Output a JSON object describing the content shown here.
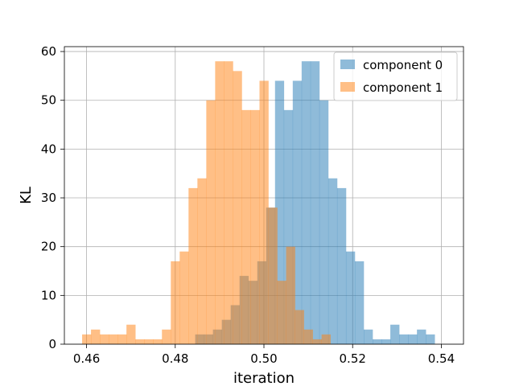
{
  "chart_data": {
    "type": "histogram",
    "title": "",
    "xlabel": "iteration",
    "ylabel": "KL",
    "xlim": [
      0.455,
      0.545
    ],
    "ylim": [
      0,
      61
    ],
    "xticks": [
      0.46,
      0.48,
      0.5,
      0.52,
      0.54
    ],
    "xtick_labels": [
      "0.46",
      "0.48",
      "0.50",
      "0.52",
      "0.54"
    ],
    "yticks": [
      0,
      10,
      20,
      30,
      40,
      50,
      60
    ],
    "ytick_labels": [
      "0",
      "10",
      "20",
      "30",
      "40",
      "50",
      "60"
    ],
    "grid": true,
    "legend_position": "top-right",
    "bin_width": 0.002,
    "series": [
      {
        "name": "component 0",
        "color": "#1f77b4",
        "alpha": 0.5,
        "bins_start": 0.4845,
        "counts": [
          2,
          2,
          3,
          5,
          8,
          14,
          13,
          17,
          28,
          54,
          48,
          54,
          58,
          58,
          50,
          34,
          32,
          19,
          17,
          3,
          1,
          1,
          4,
          2,
          2,
          3,
          2
        ]
      },
      {
        "name": "component 1",
        "color": "#ff7f0e",
        "alpha": 0.5,
        "bins_start": 0.459,
        "counts": [
          2,
          3,
          2,
          2,
          2,
          4,
          1,
          1,
          1,
          3,
          17,
          19,
          32,
          34,
          50,
          58,
          58,
          56,
          48,
          48,
          54,
          28,
          13,
          20,
          7,
          3,
          1,
          2
        ]
      }
    ]
  }
}
